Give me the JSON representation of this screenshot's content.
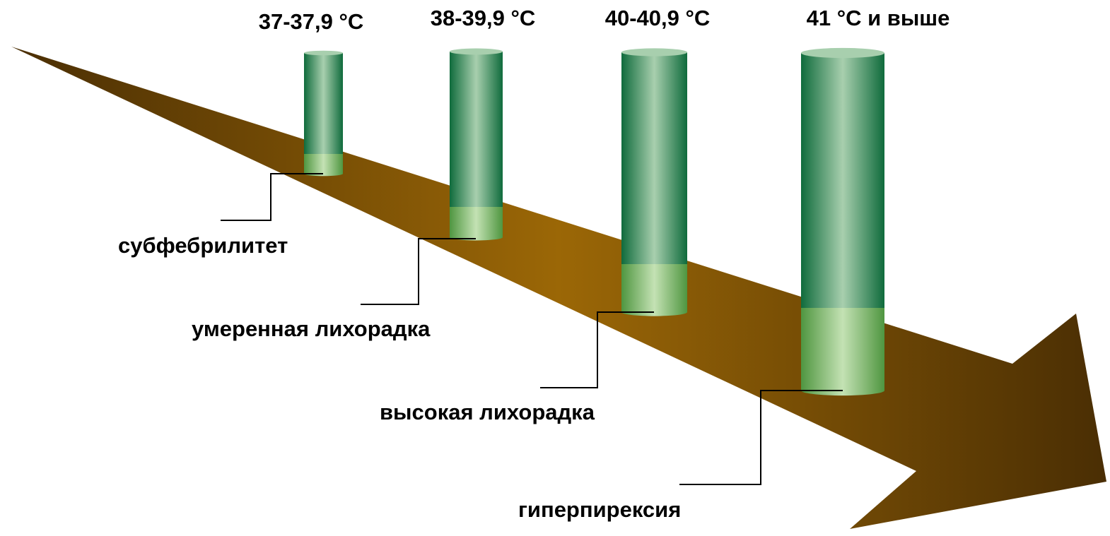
{
  "colors": {
    "arrow_dark": "#4a2e04",
    "arrow_light": "#9b6706",
    "cylinder_dark": "#0f6b3c",
    "cylinder_light": "#a8cfae",
    "band_dark": "#4f9640",
    "band_light": "#c4e2b4",
    "leader_line": "#000000",
    "text": "#000000"
  },
  "levels": [
    {
      "range": "37-37,9 °C",
      "stage": "субфебрилитет"
    },
    {
      "range": "38-39,9 °C",
      "stage": "умеренная лихорадка"
    },
    {
      "range": "40-40,9 °C",
      "stage": "высокая лихорадка"
    },
    {
      "range": "41 °C и выше",
      "stage": "гиперпирексия"
    }
  ]
}
